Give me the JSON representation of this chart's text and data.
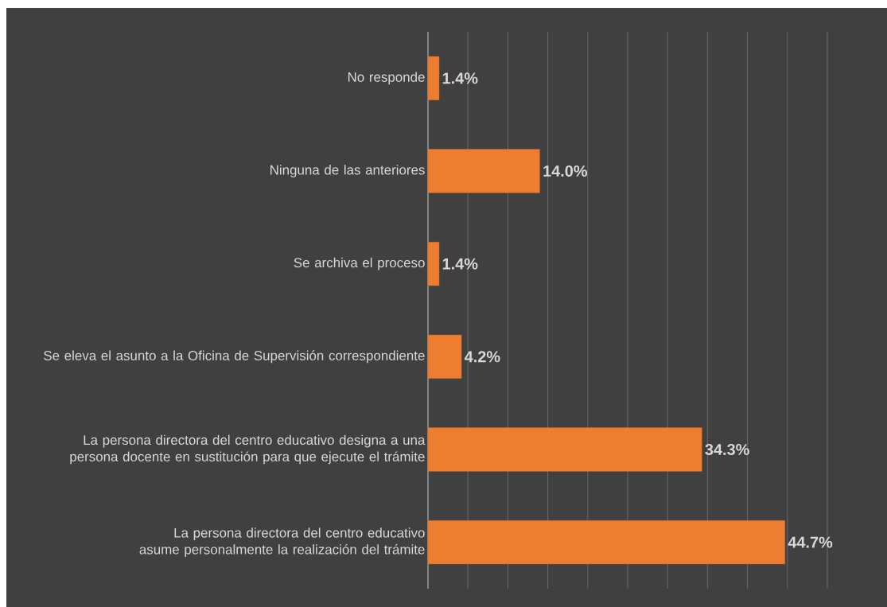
{
  "chart_data": {
    "type": "bar",
    "orientation": "horizontal",
    "categories": [
      "No responde",
      "Ninguna de las anteriores",
      "Se archiva el proceso",
      "Se eleva el asunto a la Oficina de Supervisión correspondiente",
      "La persona directora del centro educativo designa a una persona docente en sustitución para que ejecute el trámite",
      "La persona directora del centro educativo asume personalmente la realización del trámite"
    ],
    "values": [
      1.4,
      14.0,
      1.4,
      4.2,
      34.3,
      44.7
    ],
    "value_labels": [
      "1.4%",
      "14.0%",
      "1.4%",
      "4.2%",
      "34.3%",
      "44.7%"
    ],
    "color": "#ed7d31",
    "xlim": [
      0,
      50
    ],
    "xticks": [
      {
        "value": 0,
        "label": null
      },
      {
        "value": 5,
        "label": null
      },
      {
        "value": 10,
        "label": null
      },
      {
        "value": 15,
        "label": null
      },
      {
        "value": 20,
        "label": null
      },
      {
        "value": 25,
        "label": null
      },
      {
        "value": 30,
        "label": null
      },
      {
        "value": 35,
        "label": null
      },
      {
        "value": 40,
        "label": null
      },
      {
        "value": 45,
        "label": null
      },
      {
        "value": 50,
        "label": null
      }
    ],
    "grid": "x",
    "tick_labels": "y"
  }
}
